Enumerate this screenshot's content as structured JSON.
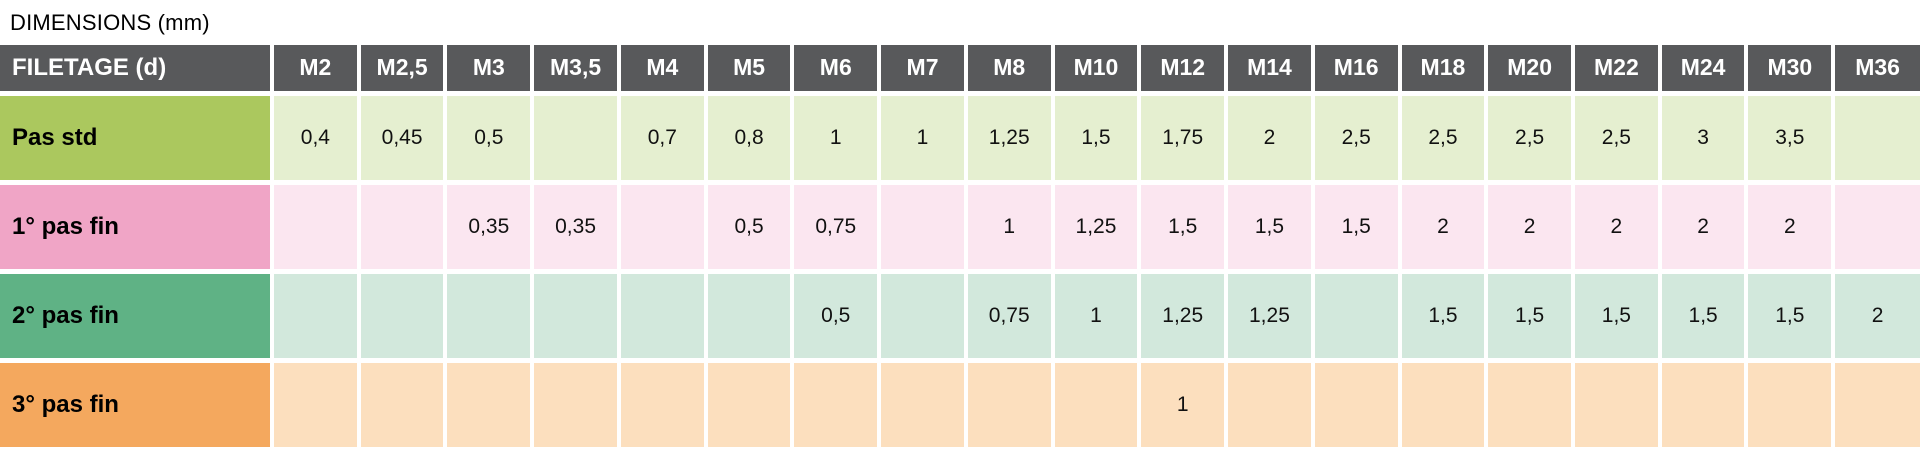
{
  "title": "DIMENSIONS (mm)",
  "colors": {
    "header_bg": "#58595b",
    "header_text": "#ffffff",
    "grid_white": "#ffffff"
  },
  "chart_data": {
    "type": "table",
    "title": "DIMENSIONS (mm)",
    "corner_header": "FILETAGE (d)",
    "columns": [
      "M2",
      "M2,5",
      "M3",
      "M3,5",
      "M4",
      "M5",
      "M6",
      "M7",
      "M8",
      "M10",
      "M12",
      "M14",
      "M16",
      "M18",
      "M20",
      "M22",
      "M24",
      "M30",
      "M36"
    ],
    "rows": [
      {
        "key": "pas-std",
        "label": "Pas std",
        "label_bg": "#abc85e",
        "cell_bg": "#e5efd0",
        "values": [
          "0,4",
          "0,45",
          "0,5",
          "",
          "0,7",
          "0,8",
          "1",
          "1",
          "1,25",
          "1,5",
          "1,75",
          "2",
          "2,5",
          "2,5",
          "2,5",
          "2,5",
          "3",
          "3,5",
          ""
        ]
      },
      {
        "key": "pas-fin-1",
        "label": "1° pas fin",
        "label_bg": "#f0a5c6",
        "cell_bg": "#fbe6f0",
        "values": [
          "",
          "",
          "0,35",
          "0,35",
          "",
          "0,5",
          "0,75",
          "",
          "1",
          "1,25",
          "1,5",
          "1,5",
          "1,5",
          "2",
          "2",
          "2",
          "2",
          "2",
          ""
        ]
      },
      {
        "key": "pas-fin-2",
        "label": "2° pas fin",
        "label_bg": "#5fb285",
        "cell_bg": "#d2e8dc",
        "values": [
          "",
          "",
          "",
          "",
          "",
          "",
          "0,5",
          "",
          "0,75",
          "1",
          "1,25",
          "1,25",
          "",
          "1,5",
          "1,5",
          "1,5",
          "1,5",
          "1,5",
          "2"
        ]
      },
      {
        "key": "pas-fin-3",
        "label": "3° pas fin",
        "label_bg": "#f4a85e",
        "cell_bg": "#fcdfbe",
        "values": [
          "",
          "",
          "",
          "",
          "",
          "",
          "",
          "",
          "",
          "",
          "1",
          "",
          "",
          "",
          "",
          "",
          "",
          "",
          ""
        ]
      }
    ]
  }
}
